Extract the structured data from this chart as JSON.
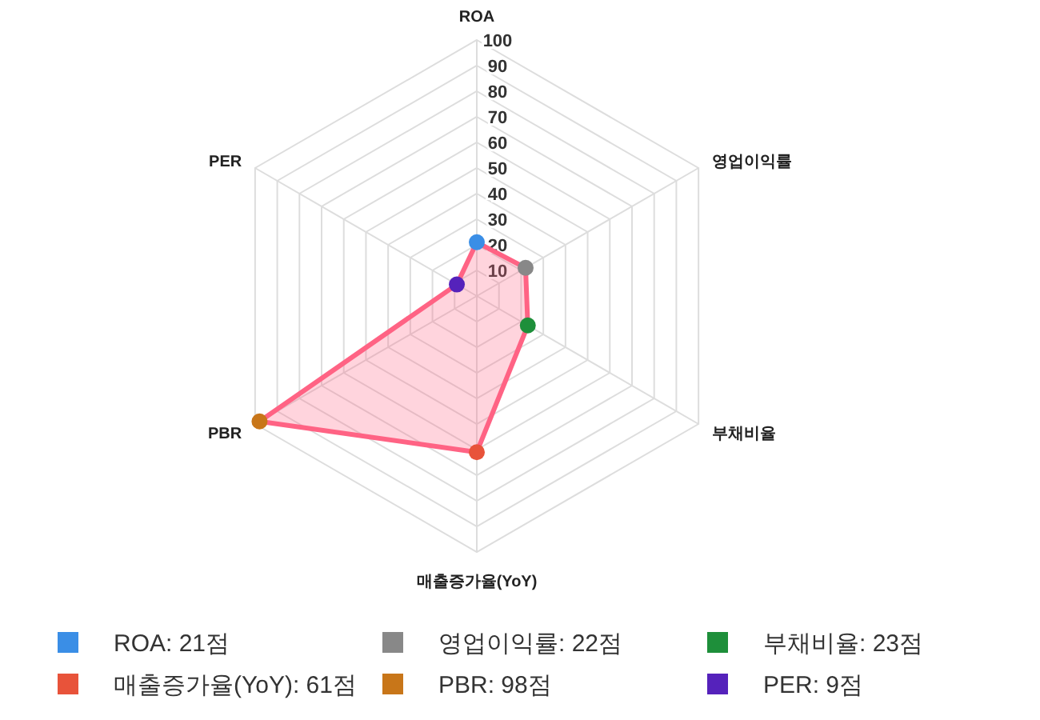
{
  "chart_data": {
    "type": "radar",
    "categories": [
      "ROA",
      "영업이익률",
      "부채비율",
      "매출증가율(YoY)",
      "PBR",
      "PER"
    ],
    "ylim": [
      0,
      100
    ],
    "yticks": [
      10,
      20,
      30,
      40,
      50,
      60,
      70,
      80,
      90,
      100
    ],
    "grid": true,
    "marker": "circle",
    "series": [
      {
        "color": "#ff6384",
        "colors": [
          "#3a8ee6",
          "#888888",
          "#1e8f3a",
          "#e8533a",
          "#c87619",
          "#5522bb"
        ],
        "values": [
          21,
          22,
          23,
          61,
          98,
          9
        ]
      }
    ],
    "annotations": [
      "ROA: 21점",
      "영업이익률: 22점",
      "부채비율: 23점",
      "매출증가율(YoY): 61점",
      "PBR: 98점",
      "PER: 9점"
    ]
  }
}
